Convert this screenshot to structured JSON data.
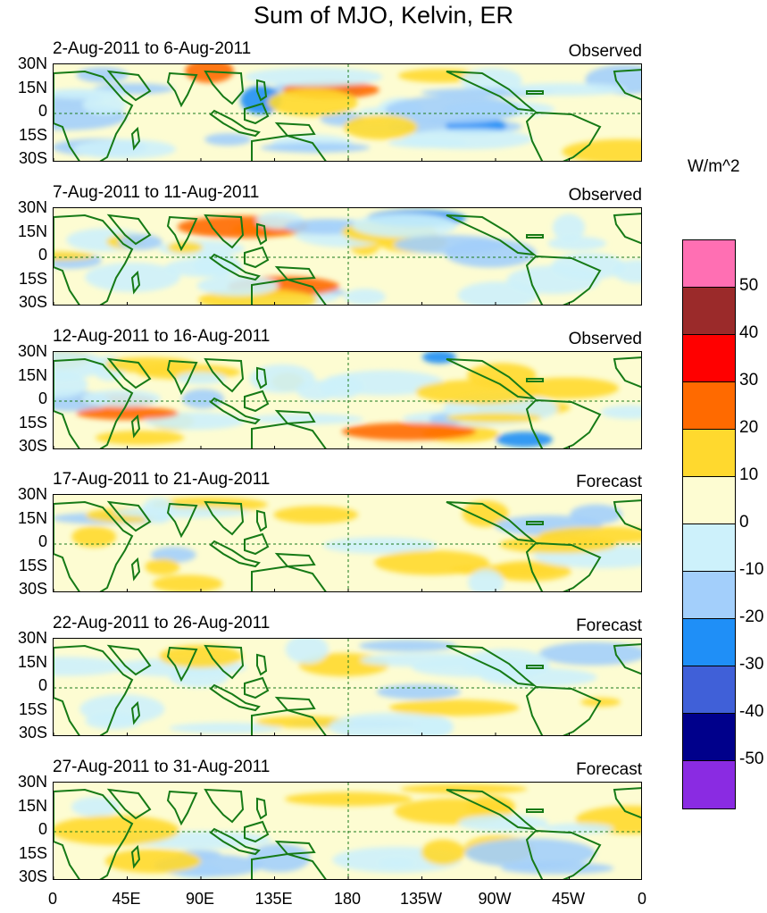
{
  "title": "Sum of MJO, Kelvin, ER",
  "units": "W/m^2",
  "latitude_labels": [
    "30N",
    "15N",
    "0",
    "15S",
    "30S"
  ],
  "longitude_labels": [
    "0",
    "45E",
    "90E",
    "135E",
    "180",
    "135W",
    "90W",
    "45W",
    "0"
  ],
  "panels": [
    {
      "label": "2-Aug-2011 to 6-Aug-2011",
      "status": "Observed"
    },
    {
      "label": "7-Aug-2011 to 11-Aug-2011",
      "status": "Observed"
    },
    {
      "label": "12-Aug-2011 to 16-Aug-2011",
      "status": "Observed"
    },
    {
      "label": "17-Aug-2011 to 21-Aug-2011",
      "status": "Forecast"
    },
    {
      "label": "22-Aug-2011 to 26-Aug-2011",
      "status": "Forecast"
    },
    {
      "label": "27-Aug-2011 to 31-Aug-2011",
      "status": "Forecast"
    }
  ],
  "colorbar": {
    "labels": [
      "50",
      "40",
      "30",
      "20",
      "10",
      "0",
      "-10",
      "-20",
      "-30",
      "-40",
      "-50"
    ],
    "colors": [
      "#ff6fb3",
      "#9b2a2a",
      "#ff0000",
      "#ff6a00",
      "#ffd92e",
      "#fdfcd2",
      "#cdf1fb",
      "#a3cffb",
      "#1f8ff7",
      "#4060d8",
      "#00008b",
      "#8a2be2"
    ]
  },
  "map_colors": {
    "land": "#167a16",
    "equator_line": "#1c7a1c"
  }
}
